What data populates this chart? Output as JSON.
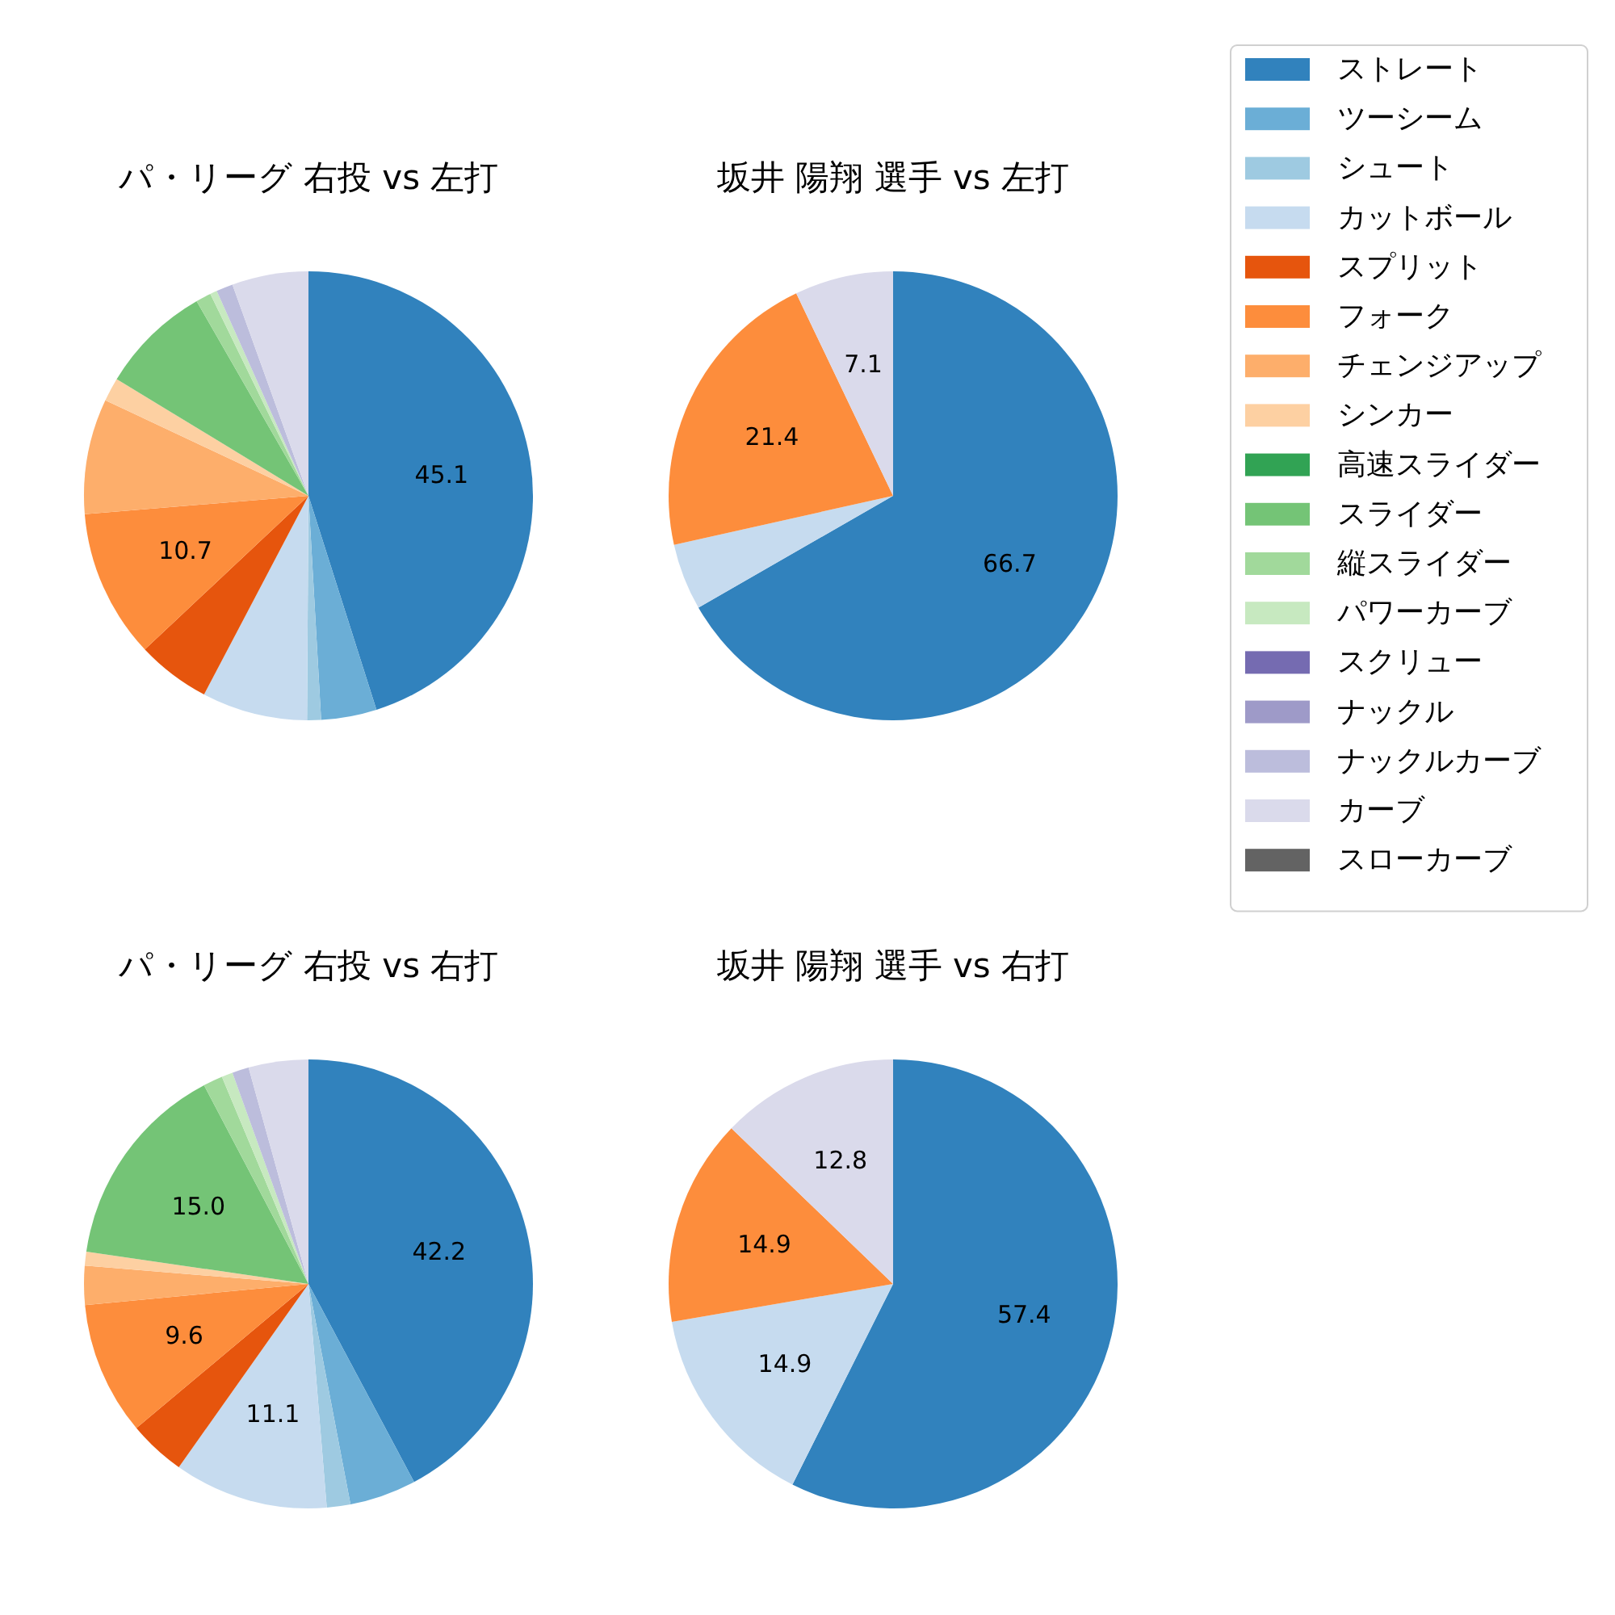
{
  "chart_data": [
    {
      "type": "pie",
      "title": "パ・リーグ 右投 vs 左打",
      "legend": "right",
      "categories": [
        "ストレート",
        "ツーシーム",
        "シュート",
        "カットボール",
        "スプリット",
        "フォーク",
        "チェンジアップ",
        "シンカー",
        "高速スライダー",
        "スライダー",
        "縦スライダー",
        "パワーカーブ",
        "スクリュー",
        "ナックル",
        "ナックルカーブ",
        "カーブ",
        "スローカーブ"
      ],
      "values": [
        45.1,
        4.0,
        1.0,
        7.6,
        5.3,
        10.7,
        8.3,
        1.7,
        0,
        8.0,
        1.1,
        0.5,
        0,
        0,
        1.2,
        5.5,
        0
      ],
      "colors": [
        "#3182bd",
        "#6baed6",
        "#9ecae1",
        "#c6dbef",
        "#e6550d",
        "#fd8d3c",
        "#fdae6b",
        "#fdd0a2",
        "#31a354",
        "#74c476",
        "#a1d99b",
        "#c7e9c0",
        "#756bb1",
        "#9e9ac8",
        "#bcbddc",
        "#dadaeb",
        "#636363"
      ],
      "value_labels": [
        "45.1",
        null,
        null,
        null,
        null,
        "10.7",
        null,
        null,
        null,
        null,
        null,
        null,
        null,
        null,
        null,
        null,
        null
      ]
    },
    {
      "type": "pie",
      "title": "坂井 陽翔 選手 vs 左打",
      "categories": [
        null,
        null,
        null,
        null
      ],
      "values": [
        66.7,
        4.8,
        21.4,
        7.1
      ],
      "colors": [
        "#3182bd",
        "#c6dbef",
        "#fd8d3c",
        "#dadaeb"
      ],
      "value_labels": [
        "66.7",
        null,
        "21.4",
        "7.1"
      ]
    },
    {
      "type": "pie",
      "title": "パ・リーグ 右投 vs 右打",
      "categories": [
        null,
        null,
        null,
        null,
        null,
        null,
        null,
        null,
        null,
        null,
        null,
        null,
        null
      ],
      "values": [
        42.2,
        4.8,
        1.7,
        11.1,
        4.1,
        9.6,
        2.8,
        1.0,
        15.0,
        1.4,
        0.8,
        1.2,
        4.3
      ],
      "colors": [
        "#3182bd",
        "#6baed6",
        "#9ecae1",
        "#c6dbef",
        "#e6550d",
        "#fd8d3c",
        "#fdae6b",
        "#fdd0a2",
        "#74c476",
        "#a1d99b",
        "#c7e9c0",
        "#bcbddc",
        "#dadaeb"
      ],
      "value_labels": [
        "42.2",
        null,
        null,
        "11.1",
        null,
        "9.6",
        null,
        null,
        "15.0",
        null,
        null,
        null,
        null
      ]
    },
    {
      "type": "pie",
      "title": "坂井 陽翔 選手 vs 右打",
      "categories": [
        null,
        null,
        null,
        null
      ],
      "values": [
        57.4,
        14.9,
        14.9,
        12.8
      ],
      "colors": [
        "#3182bd",
        "#c6dbef",
        "#fd8d3c",
        "#dadaeb"
      ],
      "value_labels": [
        "57.4",
        "14.9",
        "14.9",
        "12.8"
      ]
    }
  ]
}
